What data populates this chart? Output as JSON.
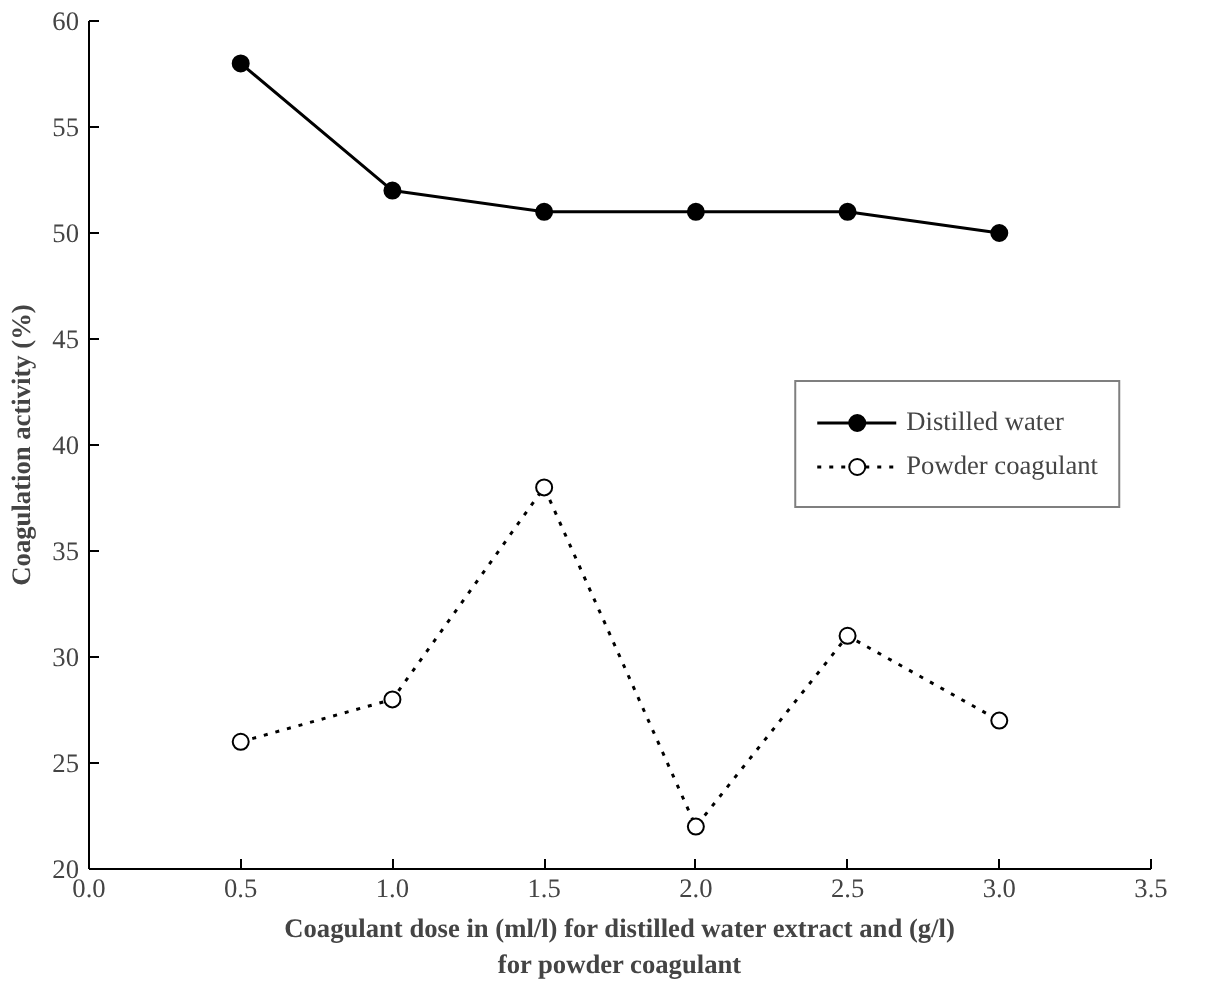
{
  "chart_data": {
    "type": "line",
    "xlabel": "Coagulant dose in (ml/l) for distilled water extract and (g/l)\nfor powder coagulant",
    "ylabel": "Coagulation activity (%)",
    "x": [
      0.5,
      1.0,
      1.5,
      2.0,
      2.5,
      3.0
    ],
    "series": [
      {
        "name": "Distilled water",
        "color": "#000000",
        "values": [
          58,
          52,
          51,
          51,
          51,
          50
        ],
        "line_style": "solid"
      },
      {
        "name": "Powder coagulant",
        "color": "#000000",
        "values": [
          26,
          28,
          38,
          22,
          31,
          27
        ],
        "line_style": "dotted"
      }
    ],
    "xlim": [
      0,
      3.5
    ],
    "xticks": [
      {
        "value": 0,
        "label": "0.0"
      },
      {
        "value": 0.5,
        "label": "0.5"
      },
      {
        "value": 1,
        "label": "1.0"
      },
      {
        "value": 1.5,
        "label": "1.5"
      },
      {
        "value": 2,
        "label": "2.0"
      },
      {
        "value": 2.5,
        "label": "2.5"
      },
      {
        "value": 3,
        "label": "3.0"
      },
      {
        "value": 3.5,
        "label": "3.5"
      }
    ],
    "ylim": [
      20,
      60
    ],
    "yticks": [
      20,
      25,
      30,
      35,
      40,
      45,
      50,
      55,
      60
    ],
    "marker": "circle",
    "legend": "right",
    "grid": false
  }
}
